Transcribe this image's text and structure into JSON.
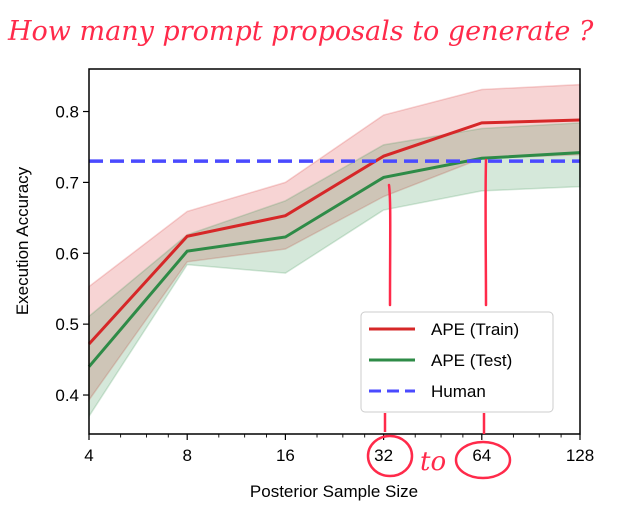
{
  "chart_data": {
    "type": "line",
    "title": "",
    "xlabel": "Posterior Sample Size",
    "ylabel": "Execution Accuracy",
    "x_scale": "log2",
    "x": [
      4,
      8,
      16,
      32,
      64,
      128
    ],
    "x_tick_labels": [
      "4",
      "8",
      "16",
      "32",
      "64",
      "128"
    ],
    "y_ticks": [
      0.4,
      0.5,
      0.6,
      0.7,
      0.8
    ],
    "y_tick_labels": [
      "0.4",
      "0.5",
      "0.6",
      "0.7",
      "0.8"
    ],
    "xlim": [
      4,
      128
    ],
    "ylim": [
      0.345,
      0.86
    ],
    "grid": false,
    "legend_position": "lower-right",
    "series": [
      {
        "name": "APE (Train)",
        "color": "#d62728",
        "style": "solid",
        "values": [
          0.472,
          0.624,
          0.653,
          0.737,
          0.784,
          0.788
        ],
        "upper": [
          0.553,
          0.659,
          0.7,
          0.795,
          0.831,
          0.838
        ],
        "lower": [
          0.393,
          0.588,
          0.606,
          0.68,
          0.734,
          0.739
        ]
      },
      {
        "name": "APE (Test)",
        "color": "#2e8b47",
        "style": "solid",
        "values": [
          0.44,
          0.603,
          0.623,
          0.707,
          0.734,
          0.742
        ],
        "upper": [
          0.511,
          0.626,
          0.674,
          0.753,
          0.776,
          0.784
        ],
        "lower": [
          0.37,
          0.584,
          0.572,
          0.661,
          0.688,
          0.694
        ]
      },
      {
        "name": "Human",
        "color": "#4a4aff",
        "style": "dashed",
        "constant": 0.73
      }
    ]
  },
  "annotations": {
    "heading": "How many prompt proposals to generate ?",
    "between": "to",
    "ink_color": "#ff2a4a",
    "circled_ticks": [
      "32",
      "64"
    ]
  }
}
